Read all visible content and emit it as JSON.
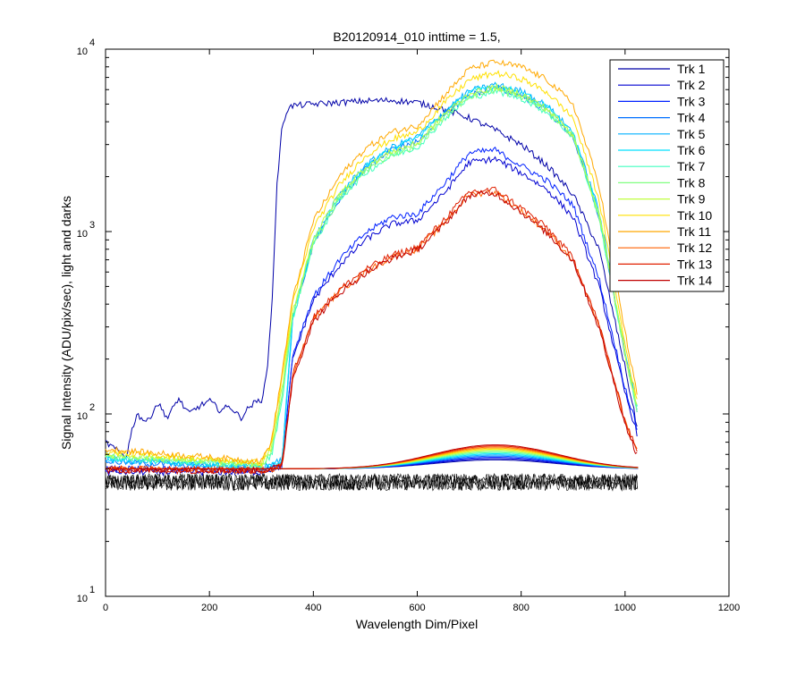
{
  "chart_data": {
    "type": "line",
    "title": "B20120914_010 inttime = 1.5,",
    "xlabel": "Wavelength Dim/Pixel",
    "ylabel": "Signal Intensity (ADU/pix/sec), light and darks",
    "xlim": [
      0,
      1200
    ],
    "ylim": [
      10,
      10000
    ],
    "yscale": "log",
    "xticks": [
      "0",
      "200",
      "400",
      "600",
      "800",
      "1000",
      "1200"
    ],
    "yticks": [
      {
        "base": "10",
        "exp": "1",
        "value": 10
      },
      {
        "base": "10",
        "exp": "2",
        "value": 100
      },
      {
        "base": "10",
        "exp": "3",
        "value": 1000
      },
      {
        "base": "10",
        "exp": "4",
        "value": 10000
      }
    ],
    "legend": {
      "position": "top-right"
    },
    "series": [
      {
        "name": "Trk 1",
        "color": "#0000a8",
        "x": [
          0,
          40,
          50,
          60,
          80,
          100,
          120,
          140,
          160,
          180,
          200,
          220,
          240,
          260,
          280,
          300,
          310,
          320,
          330,
          340,
          350,
          360,
          400,
          450,
          500,
          550,
          600,
          650,
          700,
          750,
          800,
          850,
          900,
          950,
          1000,
          1025
        ],
        "y": [
          70,
          58,
          80,
          100,
          90,
          115,
          95,
          122,
          100,
          110,
          118,
          105,
          110,
          95,
          112,
          120,
          160,
          380,
          1800,
          3800,
          4700,
          4900,
          5000,
          5100,
          5200,
          5250,
          5100,
          4700,
          4200,
          3600,
          3000,
          2300,
          1600,
          800,
          180,
          80
        ]
      },
      {
        "name": "Trk 2",
        "color": "#0000d0",
        "x": [
          0,
          300,
          320,
          340,
          360,
          400,
          450,
          500,
          550,
          600,
          650,
          700,
          750,
          800,
          850,
          900,
          950,
          1000,
          1025
        ],
        "y": [
          48,
          48,
          50,
          52,
          200,
          420,
          650,
          900,
          1100,
          1150,
          1600,
          2400,
          2500,
          2100,
          1700,
          1200,
          500,
          130,
          75
        ]
      },
      {
        "name": "Trk 3",
        "color": "#0020ff",
        "x": [
          0,
          300,
          320,
          340,
          360,
          400,
          450,
          500,
          550,
          600,
          650,
          700,
          750,
          800,
          850,
          900,
          950,
          1000,
          1025
        ],
        "y": [
          50,
          49,
          50,
          52,
          210,
          440,
          700,
          980,
          1200,
          1250,
          1800,
          2700,
          2800,
          2300,
          1900,
          1400,
          550,
          140,
          80
        ]
      },
      {
        "name": "Trk 4",
        "color": "#0070ff",
        "x": [
          0,
          300,
          320,
          340,
          360,
          400,
          450,
          500,
          550,
          600,
          650,
          700,
          750,
          800,
          850,
          900,
          950,
          1000,
          1025
        ],
        "y": [
          55,
          50,
          52,
          55,
          330,
          850,
          1500,
          2200,
          2800,
          3100,
          4300,
          5600,
          6100,
          5600,
          4600,
          3300,
          1200,
          210,
          100
        ]
      },
      {
        "name": "Trk 5",
        "color": "#00b0ff",
        "x": [
          0,
          300,
          320,
          340,
          360,
          400,
          450,
          500,
          550,
          600,
          650,
          700,
          750,
          800,
          850,
          900,
          950,
          1000,
          1025
        ],
        "y": [
          56,
          51,
          53,
          56,
          345,
          900,
          1600,
          2300,
          2900,
          3300,
          4500,
          5900,
          6400,
          5900,
          4900,
          3500,
          1300,
          220,
          102
        ]
      },
      {
        "name": "Trk 6",
        "color": "#00e0ff",
        "x": [
          0,
          300,
          320,
          340,
          360,
          400,
          450,
          500,
          550,
          600,
          650,
          700,
          750,
          800,
          850,
          900,
          950,
          1000,
          1025
        ],
        "y": [
          57,
          51,
          53,
          56,
          340,
          880,
          1550,
          2250,
          2850,
          3250,
          4400,
          5800,
          6300,
          5800,
          4800,
          3450,
          1250,
          215,
          100
        ]
      },
      {
        "name": "Trk 7",
        "color": "#40ffc0",
        "x": [
          0,
          300,
          320,
          340,
          360,
          400,
          450,
          500,
          550,
          600,
          650,
          700,
          750,
          800,
          850,
          900,
          950,
          1000,
          1025
        ],
        "y": [
          58,
          52,
          60,
          120,
          330,
          850,
          1500,
          2100,
          2600,
          2900,
          4100,
          5400,
          5900,
          5400,
          4500,
          3300,
          1200,
          210,
          100
        ]
      },
      {
        "name": "Trk 8",
        "color": "#80ff80",
        "x": [
          0,
          300,
          320,
          340,
          360,
          400,
          450,
          500,
          550,
          600,
          650,
          700,
          750,
          800,
          850,
          900,
          950,
          1000,
          1025
        ],
        "y": [
          59,
          52,
          62,
          130,
          340,
          870,
          1520,
          2150,
          2650,
          2950,
          4200,
          5500,
          6000,
          5500,
          4600,
          3350,
          1220,
          212,
          100
        ]
      },
      {
        "name": "Trk 9",
        "color": "#c0ff40",
        "x": [
          0,
          300,
          320,
          340,
          360,
          400,
          450,
          500,
          550,
          600,
          650,
          700,
          750,
          800,
          850,
          900,
          950,
          1000,
          1025
        ],
        "y": [
          60,
          53,
          66,
          140,
          360,
          920,
          1600,
          2250,
          2750,
          3050,
          4350,
          5700,
          6200,
          5700,
          4700,
          3400,
          1250,
          215,
          102
        ]
      },
      {
        "name": "Trk 10",
        "color": "#ffe000",
        "x": [
          0,
          300,
          320,
          340,
          360,
          400,
          450,
          500,
          550,
          600,
          650,
          700,
          750,
          800,
          850,
          900,
          950,
          1000,
          1025
        ],
        "y": [
          62,
          54,
          70,
          160,
          400,
          1050,
          1800,
          2600,
          3200,
          3500,
          5000,
          6800,
          7400,
          6900,
          5800,
          4200,
          1500,
          240,
          110
        ]
      },
      {
        "name": "Trk 11",
        "color": "#ffa800",
        "x": [
          0,
          300,
          320,
          340,
          360,
          400,
          450,
          500,
          550,
          600,
          650,
          700,
          750,
          800,
          850,
          900,
          950,
          1000,
          1025
        ],
        "y": [
          64,
          55,
          72,
          170,
          420,
          1150,
          2000,
          2850,
          3500,
          3800,
          5500,
          7800,
          8500,
          8000,
          6800,
          5000,
          1800,
          280,
          120
        ]
      },
      {
        "name": "Trk 12",
        "color": "#ff6000",
        "x": [
          0,
          300,
          320,
          340,
          360,
          400,
          450,
          500,
          550,
          600,
          650,
          700,
          750,
          800,
          850,
          900,
          950,
          1000,
          1025
        ],
        "y": [
          50,
          49,
          50,
          52,
          160,
          330,
          470,
          600,
          720,
          800,
          1100,
          1600,
          1650,
          1300,
          1000,
          700,
          300,
          90,
          60
        ]
      },
      {
        "name": "Trk 13",
        "color": "#e02000",
        "x": [
          0,
          300,
          320,
          340,
          360,
          400,
          450,
          500,
          550,
          600,
          650,
          700,
          750,
          800,
          850,
          900,
          950,
          1000,
          1025
        ],
        "y": [
          50,
          49,
          50,
          53,
          165,
          340,
          480,
          620,
          740,
          820,
          1150,
          1650,
          1700,
          1350,
          1050,
          720,
          310,
          92,
          62
        ]
      },
      {
        "name": "Trk 14",
        "color": "#c00000",
        "x": [
          0,
          300,
          320,
          340,
          360,
          400,
          450,
          500,
          550,
          600,
          650,
          700,
          750,
          800,
          850,
          900,
          950,
          1000,
          1025
        ],
        "y": [
          49,
          49,
          50,
          52,
          155,
          320,
          460,
          590,
          710,
          790,
          1080,
          1580,
          1620,
          1280,
          980,
          690,
          295,
          88,
          58
        ]
      }
    ]
  }
}
